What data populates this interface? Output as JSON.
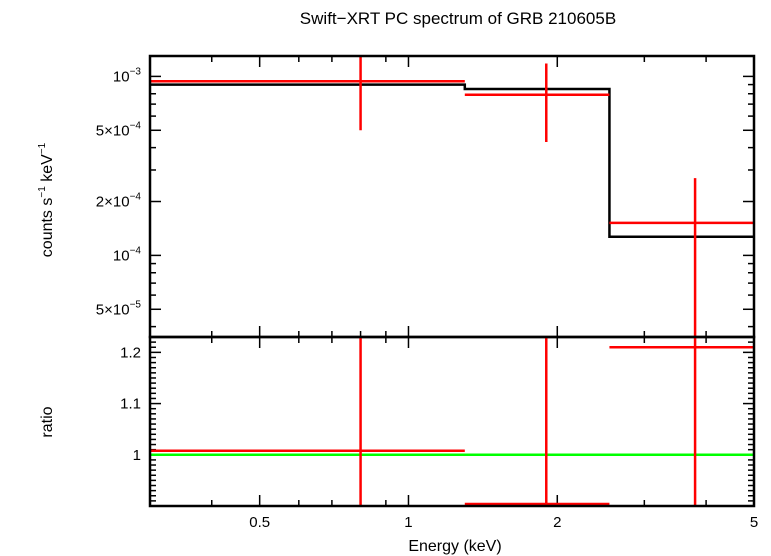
{
  "chart_data": {
    "type": "line",
    "title": "Swift−XRT PC spectrum of GRB 210605B",
    "xlabel": "Energy (keV)",
    "x_scale": "log",
    "xlim": [
      0.3,
      5
    ],
    "x_tick_labels": [
      "0.5",
      "1",
      "2",
      "5"
    ],
    "x_tick_values": [
      0.5,
      1,
      2,
      5
    ],
    "panels": [
      {
        "name": "spectrum",
        "ylabel": {
          "main": "counts s",
          "sup1": "−1",
          "mid": " keV",
          "sup2": "−1"
        },
        "y_scale": "log",
        "ylim": [
          3.5e-05,
          0.0013
        ],
        "y_ticks": [
          {
            "value": 0.001,
            "base": "10",
            "exp": "−3"
          },
          {
            "value": 0.0005,
            "base": "5×10",
            "exp": "−4"
          },
          {
            "value": 0.0002,
            "base": "2×10",
            "exp": "−4"
          },
          {
            "value": 0.0001,
            "base": "10",
            "exp": "−4"
          },
          {
            "value": 5e-05,
            "base": "5×10",
            "exp": "−5"
          }
        ],
        "data_points": [
          {
            "x_lo": 0.3,
            "x_hi": 1.3,
            "x": 0.8,
            "y": 0.00094,
            "y_lo": 0.0005,
            "y_hi": 0.0013
          },
          {
            "x_lo": 1.3,
            "x_hi": 2.55,
            "x": 1.9,
            "y": 0.00079,
            "y_lo": 0.00043,
            "y_hi": 0.00118
          },
          {
            "x_lo": 2.55,
            "x_hi": 5.0,
            "x": 3.8,
            "y": 0.000152,
            "y_lo": 3.5e-05,
            "y_hi": 0.00027
          }
        ],
        "model_steps": [
          {
            "x_lo": 0.3,
            "x_hi": 1.3,
            "y": 0.0009
          },
          {
            "x_lo": 1.3,
            "x_hi": 2.55,
            "y": 0.00085
          },
          {
            "x_lo": 2.55,
            "x_hi": 5.0,
            "y": 0.000127
          }
        ]
      },
      {
        "name": "ratio",
        "ylabel": "ratio",
        "y_scale": "linear",
        "ylim": [
          0.9,
          1.23
        ],
        "y_ticks": [
          {
            "value": 1.2,
            "label": "1.2"
          },
          {
            "value": 1.1,
            "label": "1.1"
          },
          {
            "value": 1.0,
            "label": "1"
          }
        ],
        "data_points": [
          {
            "x_lo": 0.3,
            "x_hi": 1.3,
            "x": 0.8,
            "y": 1.008,
            "y_lo": 0.9,
            "y_hi": 1.23
          },
          {
            "x_lo": 1.3,
            "x_hi": 2.55,
            "x": 1.9,
            "y": 0.904,
            "y_lo": 0.9,
            "y_hi": 1.23
          },
          {
            "x_lo": 2.55,
            "x_hi": 5.0,
            "x": 3.8,
            "y": 1.21,
            "y_lo": 0.9,
            "y_hi": 1.23
          }
        ],
        "reference_line": 1.0
      }
    ],
    "colors": {
      "data": "#ff0000",
      "model": "#000000",
      "reference": "#00ff00",
      "frame": "#000000"
    }
  }
}
